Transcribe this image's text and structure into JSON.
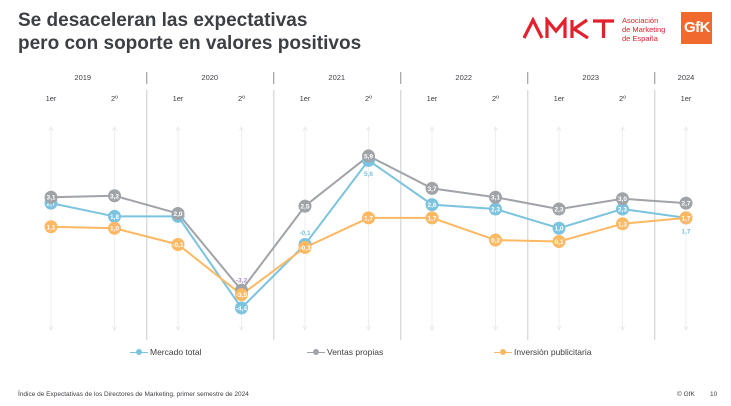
{
  "header": {
    "title_line1": "Se desaceleran las expectativas",
    "title_line2": "pero con soporte en valores positivos"
  },
  "logos": {
    "amkt": {
      "mark": "AMKT",
      "line1": "Asociación",
      "line2": "de Marketing",
      "line3": "de España",
      "color": "#e3212e"
    },
    "gfk": {
      "text": "GfK",
      "color": "#f06a30"
    }
  },
  "chart_data": {
    "type": "line",
    "title": "",
    "xlabel": "",
    "ylabel": "",
    "ylim": [
      -5.5,
      7
    ],
    "grid": false,
    "legend_position": "bottom",
    "years": [
      {
        "label": "2019",
        "periods": 2
      },
      {
        "label": "2020",
        "periods": 2
      },
      {
        "label": "2021",
        "periods": 2
      },
      {
        "label": "2022",
        "periods": 2
      },
      {
        "label": "2023",
        "periods": 2
      },
      {
        "label": "2024",
        "periods": 1
      }
    ],
    "categories": [
      "1er",
      "2º",
      "1er",
      "2º",
      "1er",
      "2º",
      "1er",
      "2º",
      "1er",
      "2º",
      "1er"
    ],
    "series": [
      {
        "name": "Mercado total",
        "color": "#7cc3df",
        "values": [
          2.7,
          1.8,
          1.8,
          -4.4,
          -0.1,
          5.6,
          2.6,
          2.3,
          1.0,
          2.3,
          1.7
        ],
        "labels": [
          "2,7",
          "1,8",
          "1,8",
          "-4,4",
          "-0,1",
          "5,6",
          "2,6",
          "2,3",
          "1,0",
          "2,3",
          "1,7"
        ]
      },
      {
        "name": "Ventas propias",
        "color": "#a0a3a8",
        "values": [
          3.1,
          3.2,
          2.0,
          -3.2,
          2.5,
          5.9,
          3.7,
          3.1,
          2.3,
          3.0,
          2.7
        ],
        "labels": [
          "3,1",
          "3,2",
          "2,0",
          "-3,2",
          "2,5",
          "5,9",
          "3,7",
          "3,1",
          "2,3",
          "3,0",
          "2,7"
        ]
      },
      {
        "name": "Inversión publicitaria",
        "color": "#fdb863",
        "values": [
          1.1,
          1.0,
          -0.1,
          -3.5,
          -0.3,
          1.7,
          1.7,
          0.2,
          0.1,
          1.3,
          1.7
        ],
        "labels": [
          "1,1",
          "1,0",
          "-0,1",
          "-3,5",
          "-0,3",
          "1,7",
          "1,7",
          "0,2",
          "0,1",
          "1,3",
          "1,7"
        ]
      }
    ]
  },
  "legend": [
    {
      "label": "Mercado total",
      "color": "#7cc3df"
    },
    {
      "label": "Ventas propias",
      "color": "#a0a3a8"
    },
    {
      "label": "Inversión publicitaria",
      "color": "#fdb863"
    }
  ],
  "footer": {
    "source": "Índice de Expectativas de los Directores de Marketing, primer semestre de 2024",
    "copyright": "© GfK",
    "page_number": "10"
  }
}
